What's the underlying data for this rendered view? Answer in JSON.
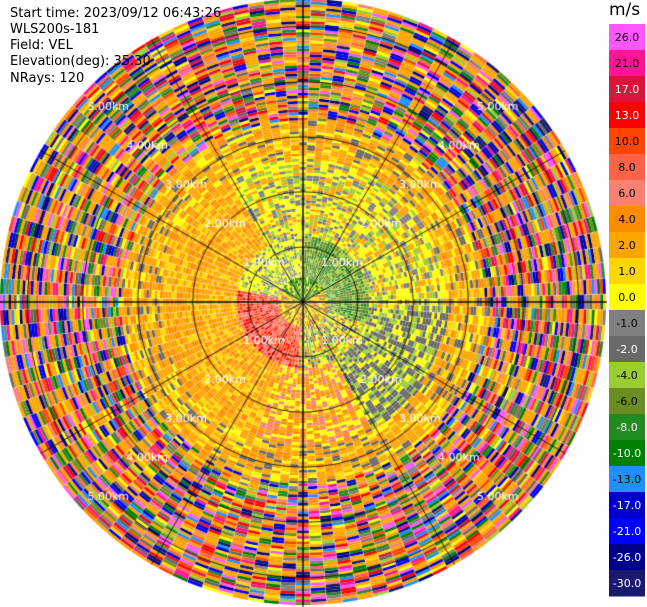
{
  "header": {
    "start_time": "Start time: 2023/09/12 06:43:26",
    "site": "WLS200s-181",
    "field": "Field: VEL",
    "elevation": "Elevation(deg): 35.30",
    "nrays": "NRays: 120"
  },
  "chart_data": {
    "type": "heatmap",
    "projection": "polar-ppi",
    "title": "",
    "unit": "m/s",
    "n_rays": 120,
    "range_rings_km": [
      1.0,
      2.0,
      3.0,
      4.0,
      5.0
    ],
    "ring_labels": [
      "1.00km",
      "2.00km",
      "3.00km",
      "4.00km",
      "5.00km"
    ],
    "colorbar": {
      "ticks": [
        "26.0",
        "21.0",
        "17.0",
        "13.0",
        "10.0",
        "8.0",
        "6.0",
        "4.0",
        "2.0",
        "1.0",
        "0.0",
        "-1.0",
        "-2.0",
        "-4.0",
        "-6.0",
        "-8.0",
        "-10.0",
        "-13.0",
        "-17.0",
        "-21.0",
        "-26.0",
        "-30.0"
      ],
      "colors": [
        "#ff55ff",
        "#ff1493",
        "#dc143c",
        "#ff0000",
        "#ff4500",
        "#ff6347",
        "#fa8072",
        "#ff8c00",
        "#ffa500",
        "#ffd700",
        "#ffff00",
        "#808080",
        "#696969",
        "#9acd32",
        "#6b8e23",
        "#228b22",
        "#008000",
        "#1e90ff",
        "#0000cd",
        "#0000ff",
        "#00008b",
        "#191970"
      ]
    },
    "pattern": [
      {
        "range_km": [
          0.0,
          0.45
        ],
        "color_velocity_ms": [
          -6.0,
          -10.0,
          0.0,
          1.0
        ]
      },
      {
        "range_km": [
          0.45,
          1.2
        ],
        "description": "north-east green (-4 to -8), south-west red/orange (8 to 17), mixed gray (0) elsewhere"
      },
      {
        "range_km": [
          1.2,
          2.6
        ],
        "description": "ring of gray (0) with yellow (2 to 4) to the west and south, green (-2 to -6) to the south-east"
      },
      {
        "range_km": [
          2.6,
          3.3
        ],
        "description": "mostly yellow (2 to 4) with gray patches"
      },
      {
        "range_km": [
          3.3,
          5.5
        ],
        "description": "noisy multicolor, all velocity classes"
      }
    ]
  }
}
